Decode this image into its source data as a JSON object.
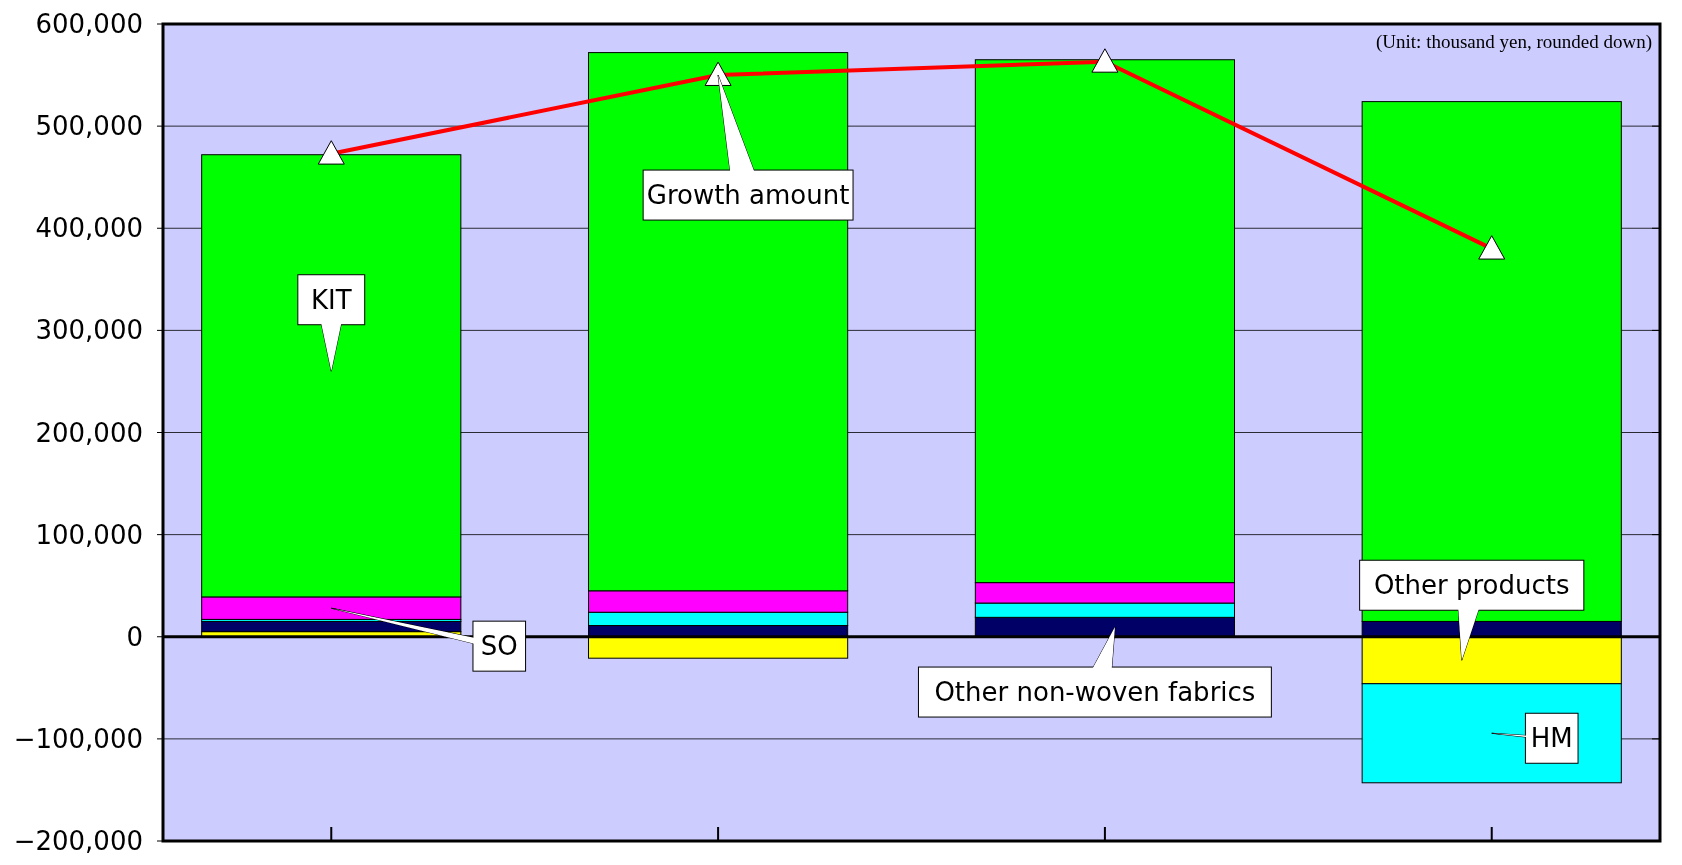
{
  "chart_data": {
    "type": "bar",
    "stacked": true,
    "categories": [
      null,
      null,
      null,
      null
    ],
    "series": [
      {
        "name": "Other products",
        "color": "#ffff00",
        "values": [
          5000,
          -21000,
          0,
          -46000
        ]
      },
      {
        "name": "Other non-woven fabrics",
        "color": "#000066",
        "values": [
          10000,
          11000,
          19000,
          15000
        ]
      },
      {
        "name": "HM",
        "color": "#00ffff",
        "values": [
          2000,
          13000,
          14000,
          -97000
        ]
      },
      {
        "name": "SO",
        "color": "#ff00ff",
        "values": [
          22000,
          21000,
          20000,
          0
        ]
      },
      {
        "name": "KIT",
        "color": "#00ff00",
        "values": [
          433000,
          527000,
          512000,
          509000
        ]
      },
      {
        "name": "Growth amount",
        "type": "line",
        "color": "#ff0000",
        "marker": "triangle",
        "values": [
          473000,
          550000,
          563000,
          380000
        ]
      }
    ],
    "ylim": [
      -200000,
      600000
    ],
    "yticks": [
      {
        "value": -200000,
        "label": "−200,000"
      },
      {
        "value": -100000,
        "label": "−100,000"
      },
      0,
      {
        "value": 100000,
        "label": "100,000"
      },
      {
        "value": 200000,
        "label": "200,000"
      },
      {
        "value": 300000,
        "label": "300,000"
      },
      {
        "value": 400000,
        "label": "400,000"
      },
      {
        "value": 500000,
        "label": "500,000"
      },
      {
        "value": 600000,
        "label": "600,000"
      }
    ],
    "grid": "y",
    "annotations": [
      "(Unit: thousand yen, rounded down)"
    ]
  }
}
